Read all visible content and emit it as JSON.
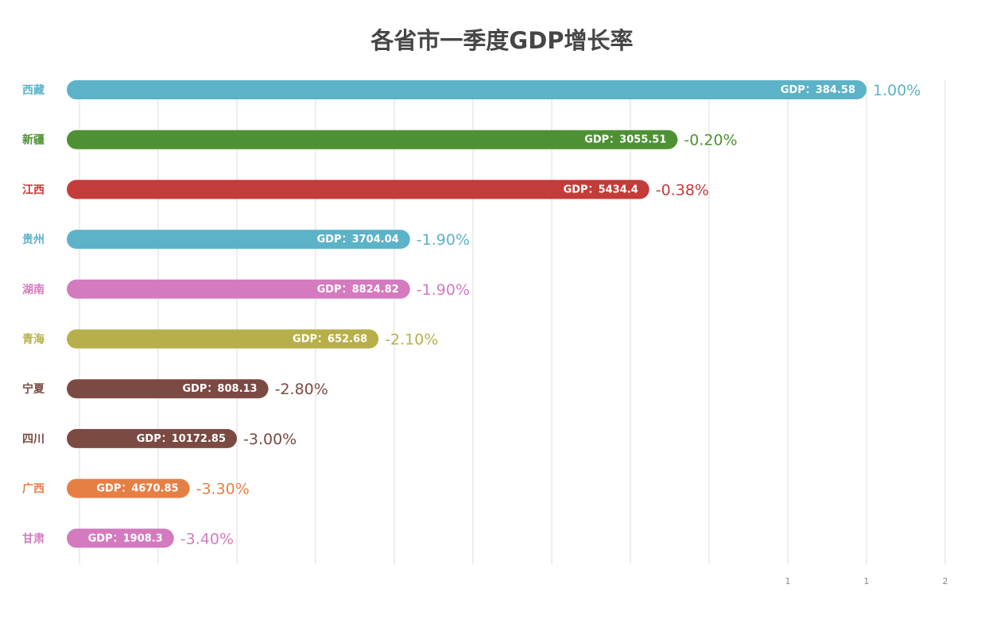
{
  "chart_data": {
    "type": "bar",
    "orientation": "horizontal",
    "title": "各省市一季度GDP增长率",
    "categories": [
      "西藏",
      "新疆",
      "江西",
      "贵州",
      "湖南",
      "青海",
      "宁夏",
      "四川",
      "广西",
      "甘肃"
    ],
    "values": [
      1.0,
      -0.2,
      -0.38,
      -1.9,
      -1.9,
      -2.1,
      -2.8,
      -3.0,
      -3.3,
      -3.4
    ],
    "value_labels": [
      "1.00%",
      "-0.20%",
      "-0.38%",
      "-1.90%",
      "-1.90%",
      "-2.10%",
      "-2.80%",
      "-3.00%",
      "-3.30%",
      "-3.40%"
    ],
    "bar_labels": [
      "GDP：384.58",
      "GDP：3055.51",
      "GDP：5434.4",
      "GDP：3704.04",
      "GDP：8824.82",
      "GDP：652.68",
      "GDP：808.13",
      "GDP：10172.85",
      "GDP：4670.85",
      "GDP：1908.3"
    ],
    "colors": [
      "#5cb3c8",
      "#4e9134",
      "#c43c39",
      "#5cb3c8",
      "#d47abf",
      "#b7b04a",
      "#7b4a42",
      "#7b4a42",
      "#e67f44",
      "#d47abf"
    ],
    "xlim": [
      -4.0,
      1.5
    ],
    "x_tick_step": 0.5,
    "x_tick_values": [
      0.5,
      1.0,
      1.5
    ],
    "x_tick_labels": [
      "1",
      "1",
      "2"
    ],
    "grid": true,
    "legend": "none"
  }
}
